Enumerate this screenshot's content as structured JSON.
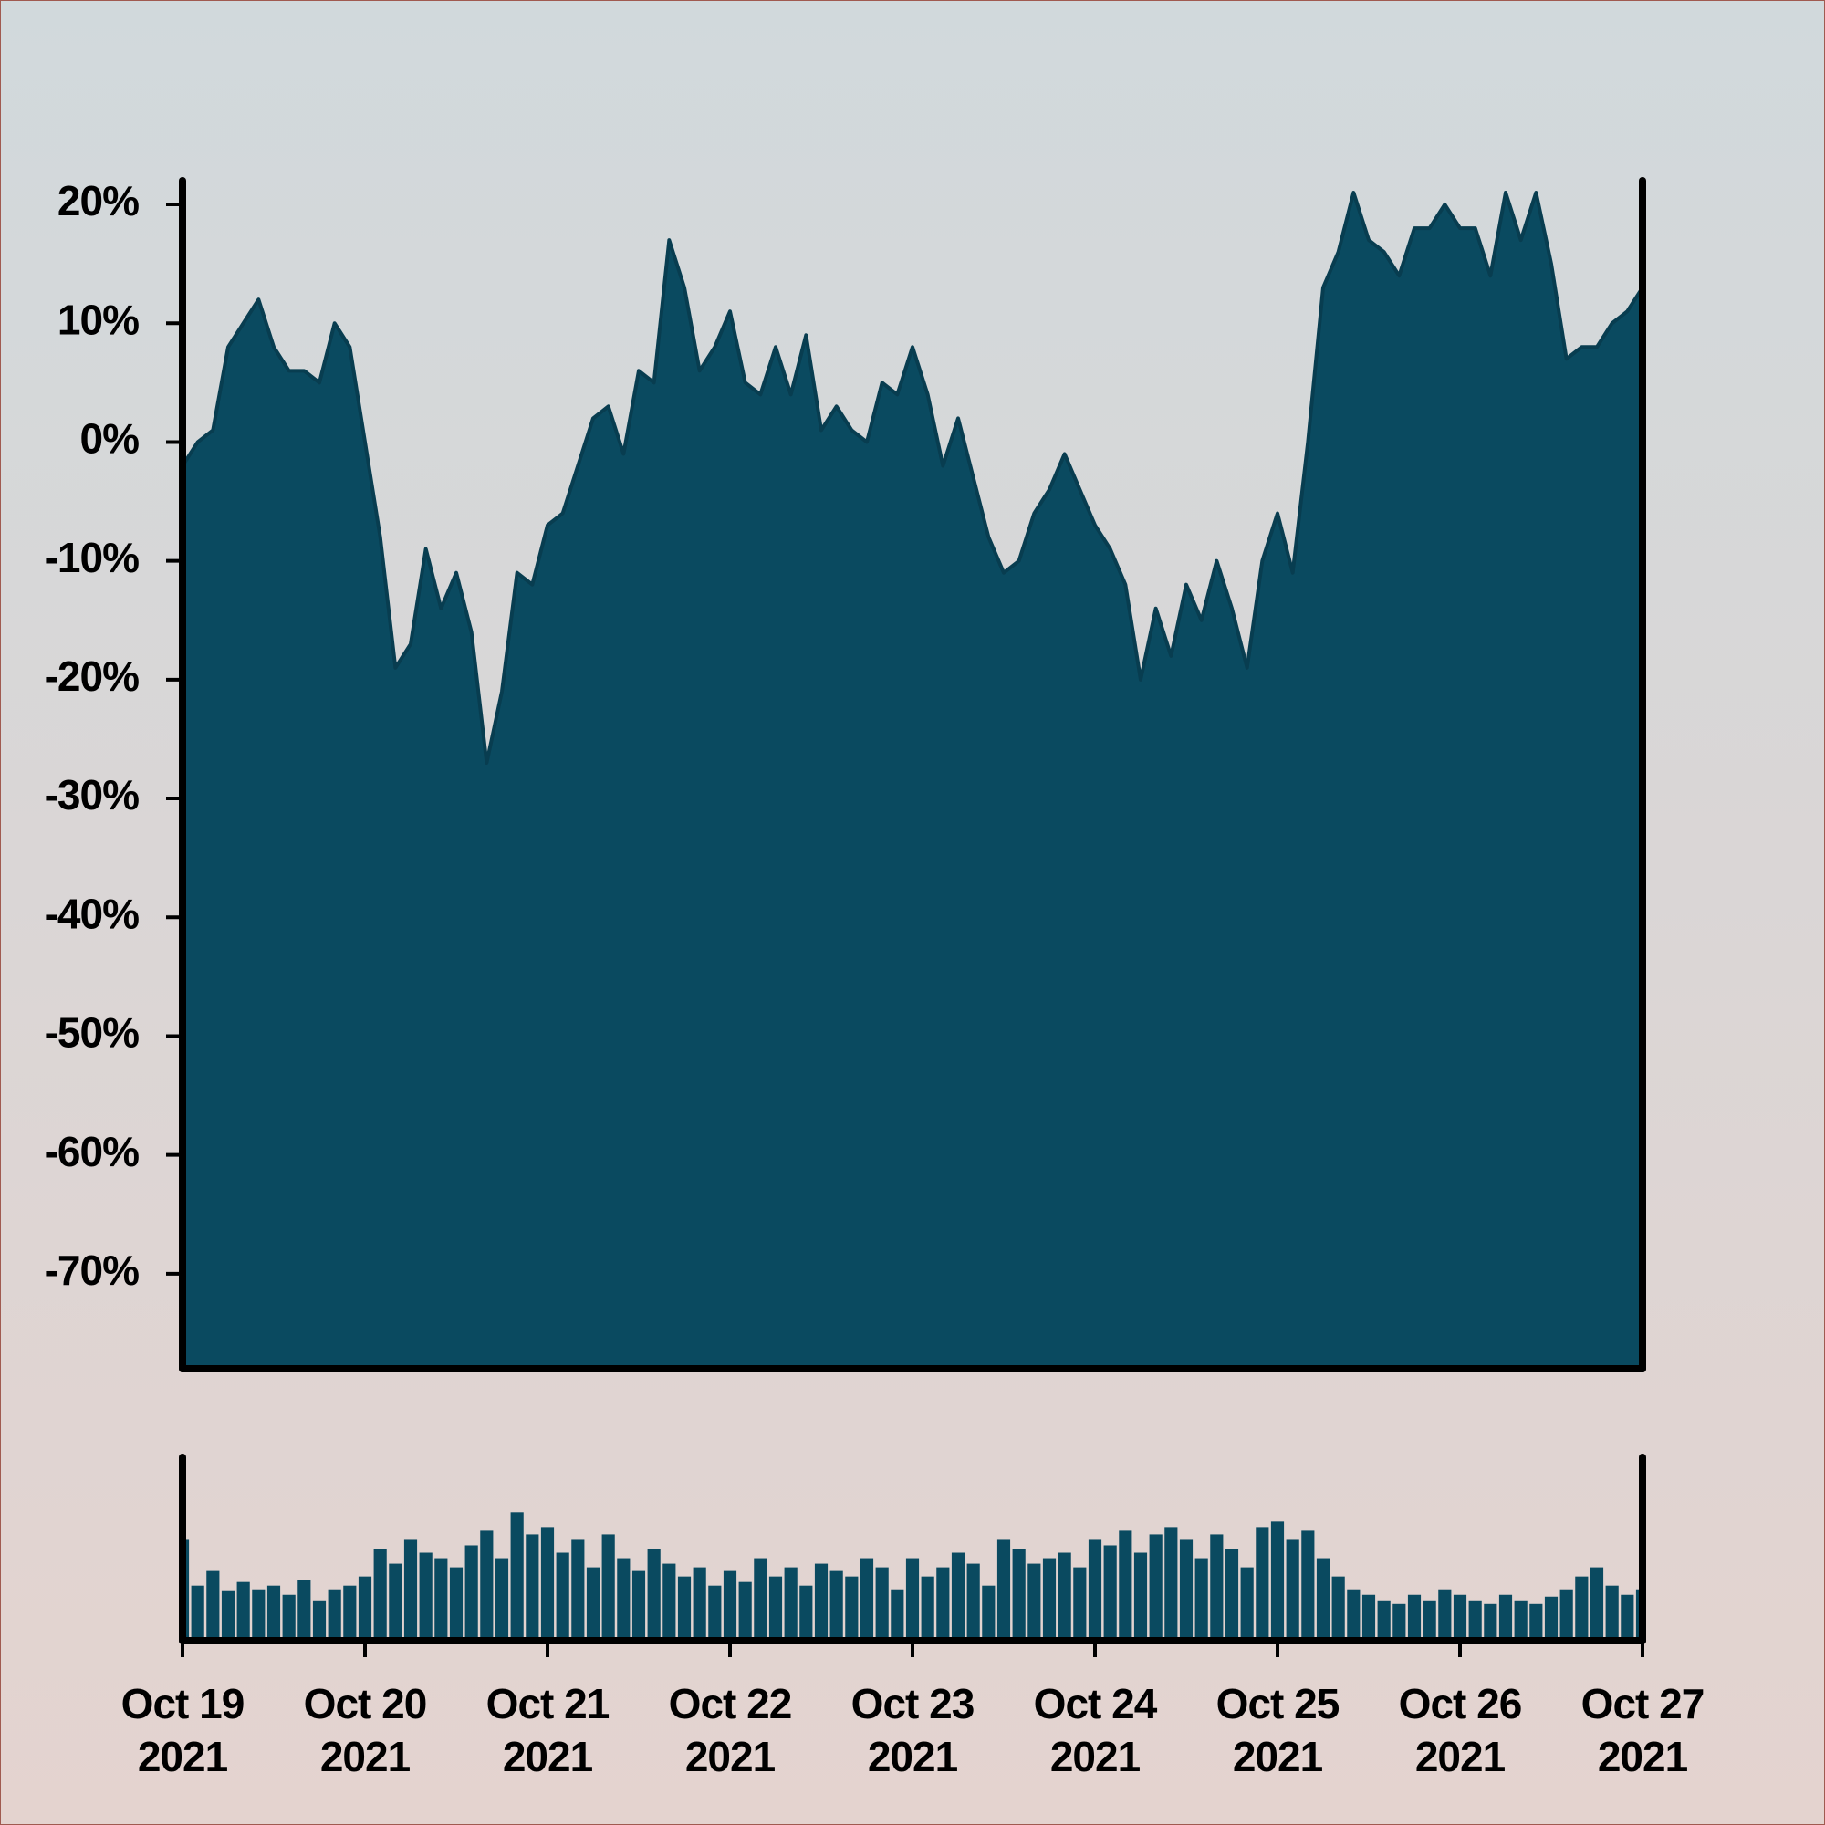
{
  "chart_data": [
    {
      "type": "area",
      "color": "#0a4a60",
      "line_color": "#083d50",
      "x": [
        "2021-10-19T00:00",
        "2021-10-19T02:00",
        "2021-10-19T04:00",
        "2021-10-19T06:00",
        "2021-10-19T08:00",
        "2021-10-19T10:00",
        "2021-10-19T12:00",
        "2021-10-19T14:00",
        "2021-10-19T16:00",
        "2021-10-19T18:00",
        "2021-10-19T20:00",
        "2021-10-19T22:00",
        "2021-10-20T00:00",
        "2021-10-20T02:00",
        "2021-10-20T04:00",
        "2021-10-20T06:00",
        "2021-10-20T08:00",
        "2021-10-20T10:00",
        "2021-10-20T12:00",
        "2021-10-20T14:00",
        "2021-10-20T16:00",
        "2021-10-20T18:00",
        "2021-10-20T20:00",
        "2021-10-20T22:00",
        "2021-10-21T00:00",
        "2021-10-21T02:00",
        "2021-10-21T04:00",
        "2021-10-21T06:00",
        "2021-10-21T08:00",
        "2021-10-21T10:00",
        "2021-10-21T12:00",
        "2021-10-21T14:00",
        "2021-10-21T16:00",
        "2021-10-21T18:00",
        "2021-10-21T20:00",
        "2021-10-21T22:00",
        "2021-10-22T00:00",
        "2021-10-22T02:00",
        "2021-10-22T04:00",
        "2021-10-22T06:00",
        "2021-10-22T08:00",
        "2021-10-22T10:00",
        "2021-10-22T12:00",
        "2021-10-22T14:00",
        "2021-10-22T16:00",
        "2021-10-22T18:00",
        "2021-10-22T20:00",
        "2021-10-22T22:00",
        "2021-10-23T00:00",
        "2021-10-23T02:00",
        "2021-10-23T04:00",
        "2021-10-23T06:00",
        "2021-10-23T08:00",
        "2021-10-23T10:00",
        "2021-10-23T12:00",
        "2021-10-23T14:00",
        "2021-10-23T16:00",
        "2021-10-23T18:00",
        "2021-10-23T20:00",
        "2021-10-23T22:00",
        "2021-10-24T00:00",
        "2021-10-24T02:00",
        "2021-10-24T04:00",
        "2021-10-24T06:00",
        "2021-10-24T08:00",
        "2021-10-24T10:00",
        "2021-10-24T12:00",
        "2021-10-24T14:00",
        "2021-10-24T16:00",
        "2021-10-24T18:00",
        "2021-10-24T20:00",
        "2021-10-24T22:00",
        "2021-10-25T00:00",
        "2021-10-25T02:00",
        "2021-10-25T04:00",
        "2021-10-25T06:00",
        "2021-10-25T08:00",
        "2021-10-25T10:00",
        "2021-10-25T12:00",
        "2021-10-25T14:00",
        "2021-10-25T16:00",
        "2021-10-25T18:00",
        "2021-10-25T20:00",
        "2021-10-25T22:00",
        "2021-10-26T00:00",
        "2021-10-26T02:00",
        "2021-10-26T04:00",
        "2021-10-26T06:00",
        "2021-10-26T08:00",
        "2021-10-26T10:00",
        "2021-10-26T12:00",
        "2021-10-26T14:00",
        "2021-10-26T16:00",
        "2021-10-26T18:00",
        "2021-10-26T20:00",
        "2021-10-26T22:00",
        "2021-10-27T00:00"
      ],
      "values": [
        -2,
        0,
        1,
        8,
        10,
        12,
        8,
        6,
        6,
        5,
        10,
        8,
        0,
        -8,
        -19,
        -17,
        -9,
        -14,
        -11,
        -16,
        -27,
        -21,
        -11,
        -12,
        -7,
        -6,
        -2,
        2,
        3,
        -1,
        6,
        5,
        17,
        13,
        6,
        8,
        11,
        5,
        4,
        8,
        4,
        9,
        1,
        3,
        1,
        0,
        5,
        4,
        8,
        4,
        -2,
        2,
        -3,
        -8,
        -11,
        -10,
        -6,
        -4,
        -1,
        -4,
        -7,
        -9,
        -12,
        -20,
        -14,
        -18,
        -12,
        -15,
        -10,
        -14,
        -19,
        -10,
        -6,
        -11,
        0,
        13,
        16,
        21,
        17,
        16,
        14,
        18,
        18,
        20,
        18,
        18,
        14,
        21,
        17,
        21,
        15,
        7,
        8,
        8,
        10,
        11,
        13
      ],
      "xlim": [
        "2021-10-19",
        "2021-10-27"
      ],
      "ylim": [
        -78,
        22
      ],
      "yticks": [
        {
          "value": 20,
          "label": "20%"
        },
        {
          "value": 10,
          "label": "10%"
        },
        {
          "value": 0,
          "label": "0%"
        },
        {
          "value": -10,
          "label": "-10%"
        },
        {
          "value": -20,
          "label": "-20%"
        },
        {
          "value": -30,
          "label": "-30%"
        },
        {
          "value": -40,
          "label": "-40%"
        },
        {
          "value": -50,
          "label": "-50%"
        },
        {
          "value": -60,
          "label": "-60%"
        },
        {
          "value": -70,
          "label": "-70%"
        }
      ]
    },
    {
      "type": "bar",
      "color": "#0a4a60",
      "x": [
        "2021-10-19T00:00",
        "2021-10-19T02:00",
        "2021-10-19T04:00",
        "2021-10-19T06:00",
        "2021-10-19T08:00",
        "2021-10-19T10:00",
        "2021-10-19T12:00",
        "2021-10-19T14:00",
        "2021-10-19T16:00",
        "2021-10-19T18:00",
        "2021-10-19T20:00",
        "2021-10-19T22:00",
        "2021-10-20T00:00",
        "2021-10-20T02:00",
        "2021-10-20T04:00",
        "2021-10-20T06:00",
        "2021-10-20T08:00",
        "2021-10-20T10:00",
        "2021-10-20T12:00",
        "2021-10-20T14:00",
        "2021-10-20T16:00",
        "2021-10-20T18:00",
        "2021-10-20T20:00",
        "2021-10-20T22:00",
        "2021-10-21T00:00",
        "2021-10-21T02:00",
        "2021-10-21T04:00",
        "2021-10-21T06:00",
        "2021-10-21T08:00",
        "2021-10-21T10:00",
        "2021-10-21T12:00",
        "2021-10-21T14:00",
        "2021-10-21T16:00",
        "2021-10-21T18:00",
        "2021-10-21T20:00",
        "2021-10-21T22:00",
        "2021-10-22T00:00",
        "2021-10-22T02:00",
        "2021-10-22T04:00",
        "2021-10-22T06:00",
        "2021-10-22T08:00",
        "2021-10-22T10:00",
        "2021-10-22T12:00",
        "2021-10-22T14:00",
        "2021-10-22T16:00",
        "2021-10-22T18:00",
        "2021-10-22T20:00",
        "2021-10-22T22:00",
        "2021-10-23T00:00",
        "2021-10-23T02:00",
        "2021-10-23T04:00",
        "2021-10-23T06:00",
        "2021-10-23T08:00",
        "2021-10-23T10:00",
        "2021-10-23T12:00",
        "2021-10-23T14:00",
        "2021-10-23T16:00",
        "2021-10-23T18:00",
        "2021-10-23T20:00",
        "2021-10-23T22:00",
        "2021-10-24T00:00",
        "2021-10-24T02:00",
        "2021-10-24T04:00",
        "2021-10-24T06:00",
        "2021-10-24T08:00",
        "2021-10-24T10:00",
        "2021-10-24T12:00",
        "2021-10-24T14:00",
        "2021-10-24T16:00",
        "2021-10-24T18:00",
        "2021-10-24T20:00",
        "2021-10-24T22:00",
        "2021-10-25T00:00",
        "2021-10-25T02:00",
        "2021-10-25T04:00",
        "2021-10-25T06:00",
        "2021-10-25T08:00",
        "2021-10-25T10:00",
        "2021-10-25T12:00",
        "2021-10-25T14:00",
        "2021-10-25T16:00",
        "2021-10-25T18:00",
        "2021-10-25T20:00",
        "2021-10-25T22:00",
        "2021-10-26T00:00",
        "2021-10-26T02:00",
        "2021-10-26T04:00",
        "2021-10-26T06:00",
        "2021-10-26T08:00",
        "2021-10-26T10:00",
        "2021-10-26T12:00",
        "2021-10-26T14:00",
        "2021-10-26T16:00",
        "2021-10-26T18:00",
        "2021-10-26T20:00",
        "2021-10-26T22:00",
        "2021-10-27T00:00"
      ],
      "values": [
        55,
        30,
        38,
        27,
        32,
        28,
        30,
        25,
        33,
        22,
        28,
        30,
        35,
        50,
        42,
        55,
        48,
        45,
        40,
        52,
        60,
        45,
        70,
        58,
        62,
        48,
        55,
        40,
        58,
        45,
        38,
        50,
        42,
        35,
        40,
        30,
        38,
        32,
        45,
        35,
        40,
        30,
        42,
        38,
        35,
        45,
        40,
        28,
        45,
        35,
        40,
        48,
        42,
        30,
        55,
        50,
        42,
        45,
        48,
        40,
        55,
        52,
        60,
        48,
        58,
        62,
        55,
        45,
        58,
        50,
        40,
        62,
        65,
        55,
        60,
        45,
        35,
        28,
        25,
        22,
        20,
        25,
        22,
        28,
        25,
        22,
        20,
        25,
        22,
        20,
        24,
        28,
        35,
        40,
        30,
        25,
        28
      ],
      "xlim": [
        "2021-10-19",
        "2021-10-27"
      ],
      "ylim": [
        0,
        100
      ],
      "xticks": [
        {
          "value": "2021-10-19",
          "label": [
            "Oct 19",
            "2021"
          ]
        },
        {
          "value": "2021-10-20",
          "label": [
            "Oct 20",
            "2021"
          ]
        },
        {
          "value": "2021-10-21",
          "label": [
            "Oct 21",
            "2021"
          ]
        },
        {
          "value": "2021-10-22",
          "label": [
            "Oct 22",
            "2021"
          ]
        },
        {
          "value": "2021-10-23",
          "label": [
            "Oct 23",
            "2021"
          ]
        },
        {
          "value": "2021-10-24",
          "label": [
            "Oct 24",
            "2021"
          ]
        },
        {
          "value": "2021-10-25",
          "label": [
            "Oct 25",
            "2021"
          ]
        },
        {
          "value": "2021-10-26",
          "label": [
            "Oct 26",
            "2021"
          ]
        },
        {
          "value": "2021-10-27",
          "label": [
            "Oct 27",
            "2021"
          ]
        }
      ]
    }
  ]
}
